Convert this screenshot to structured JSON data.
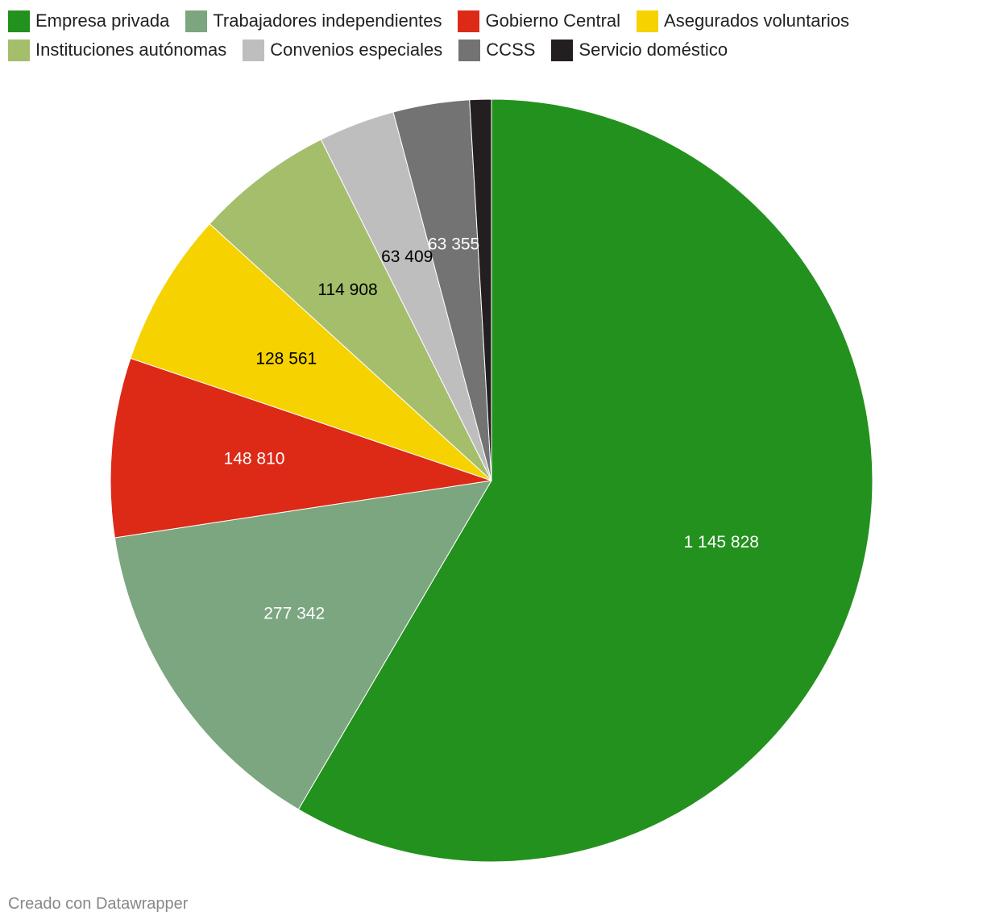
{
  "chart_data": {
    "type": "pie",
    "categories": [
      "Empresa privada",
      "Trabajadores independientes",
      "Gobierno Central",
      "Asegurados voluntarios",
      "Instituciones autónomas",
      "Convenios especiales",
      "CCSS",
      "Servicio doméstico"
    ],
    "values": [
      1145828,
      277342,
      148810,
      128561,
      114908,
      63409,
      63355,
      18000
    ],
    "value_labels": [
      "1 145 828",
      "277 342",
      "148 810",
      "128 561",
      "114 908",
      "63 409",
      "63 355",
      null
    ],
    "colors": [
      "#23911e",
      "#7ba67f",
      "#dc2a17",
      "#f5d200",
      "#a4be6b",
      "#bebebe",
      "#737373",
      "#231f20"
    ],
    "label_colors": [
      "#ffffff",
      "#ffffff",
      "#ffffff",
      "#000000",
      "#000000",
      "#000000",
      "#ffffff",
      "#ffffff"
    ],
    "credit": "Creado con Datawrapper"
  }
}
